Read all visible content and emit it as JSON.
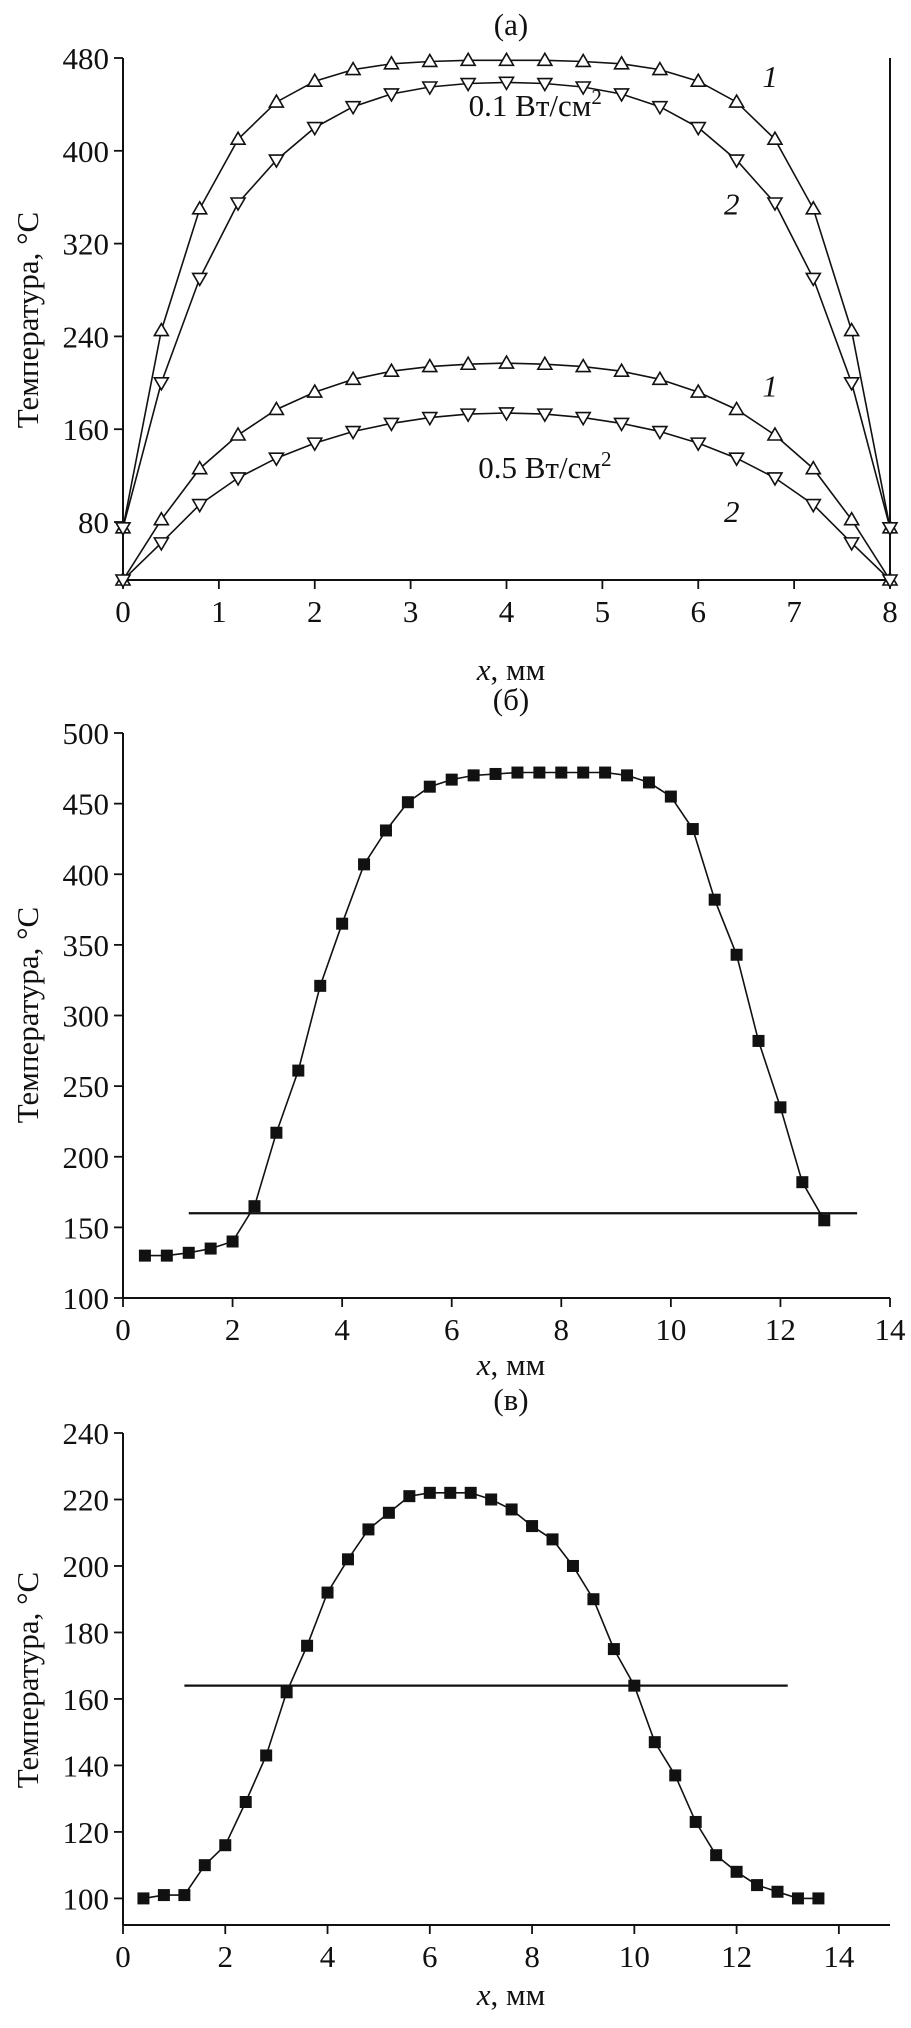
{
  "chart_data": [
    {
      "type": "line",
      "panel_label": "(а)",
      "xlabel_var": "x",
      "xlabel_unit": ", мм",
      "ylabel": "Температура, °С",
      "xlim": [
        0,
        8
      ],
      "ylim": [
        30,
        480
      ],
      "xticks": [
        0,
        1,
        2,
        3,
        4,
        5,
        6,
        7,
        8
      ],
      "yticks": [
        80,
        160,
        240,
        320,
        400,
        480
      ],
      "grid": false,
      "legend": "none",
      "annotations": [
        {
          "text": "0.1 Вт/см",
          "sup": "2"
        },
        {
          "text": "0.5 Вт/см",
          "sup": "2"
        },
        {
          "text": "1"
        },
        {
          "text": "2"
        },
        {
          "text": "1"
        },
        {
          "text": "2"
        }
      ],
      "series": [
        {
          "marker": "triangle-up",
          "x": [
            0,
            0.4,
            0.8,
            1.2,
            1.6,
            2.0,
            2.4,
            2.8,
            3.2,
            3.6,
            4.0,
            4.4,
            4.8,
            5.2,
            5.6,
            6.0,
            6.4,
            6.8,
            7.2,
            7.6,
            8.0
          ],
          "values": [
            75,
            245,
            350,
            410,
            442,
            460,
            470,
            475,
            477,
            478,
            478,
            478,
            477,
            475,
            470,
            460,
            442,
            410,
            350,
            245,
            75
          ]
        },
        {
          "marker": "triangle-down",
          "x": [
            0,
            0.4,
            0.8,
            1.2,
            1.6,
            2.0,
            2.4,
            2.8,
            3.2,
            3.6,
            4.0,
            4.4,
            4.8,
            5.2,
            5.6,
            6.0,
            6.4,
            6.8,
            7.2,
            7.6,
            8.0
          ],
          "values": [
            75,
            200,
            290,
            355,
            392,
            420,
            438,
            449,
            455,
            458,
            459,
            458,
            455,
            449,
            438,
            420,
            392,
            355,
            290,
            200,
            75
          ]
        },
        {
          "marker": "triangle-up",
          "x": [
            0,
            0.4,
            0.8,
            1.2,
            1.6,
            2.0,
            2.4,
            2.8,
            3.2,
            3.6,
            4.0,
            4.4,
            4.8,
            5.2,
            5.6,
            6.0,
            6.4,
            6.8,
            7.2,
            7.6,
            8.0
          ],
          "values": [
            30,
            82,
            126,
            155,
            177,
            192,
            203,
            210,
            214,
            216,
            217,
            216,
            214,
            210,
            203,
            192,
            177,
            155,
            126,
            82,
            30
          ]
        },
        {
          "marker": "triangle-down",
          "x": [
            0,
            0.4,
            0.8,
            1.2,
            1.6,
            2.0,
            2.4,
            2.8,
            3.2,
            3.6,
            4.0,
            4.4,
            4.8,
            5.2,
            5.6,
            6.0,
            6.4,
            6.8,
            7.2,
            7.6,
            8.0
          ],
          "values": [
            30,
            62,
            95,
            118,
            135,
            148,
            158,
            165,
            170,
            173,
            174,
            173,
            170,
            165,
            158,
            148,
            135,
            118,
            95,
            62,
            30
          ]
        }
      ]
    },
    {
      "type": "line",
      "panel_label": "(б)",
      "xlabel_var": "x",
      "xlabel_unit": ", мм",
      "ylabel": "Температура, °С",
      "xlim": [
        0,
        14
      ],
      "ylim": [
        100,
        500
      ],
      "xticks": [
        0,
        2,
        4,
        6,
        8,
        10,
        12,
        14
      ],
      "yticks": [
        100,
        150,
        200,
        250,
        300,
        350,
        400,
        450,
        500
      ],
      "grid": false,
      "legend": "none",
      "reference_line": {
        "y": 160,
        "x": [
          1.2,
          13.4
        ]
      },
      "series": [
        {
          "marker": "square",
          "x": [
            0.4,
            0.8,
            1.2,
            1.6,
            2.0,
            2.4,
            2.8,
            3.2,
            3.6,
            4.0,
            4.4,
            4.8,
            5.2,
            5.6,
            6.0,
            6.4,
            6.8,
            7.2,
            7.6,
            8.0,
            8.4,
            8.8,
            9.2,
            9.6,
            10.0,
            10.4,
            10.8,
            11.2,
            11.6,
            12.0,
            12.4,
            12.8
          ],
          "values": [
            130,
            130,
            132,
            135,
            140,
            165,
            217,
            261,
            321,
            365,
            407,
            431,
            451,
            462,
            467,
            470,
            471,
            472,
            472,
            472,
            472,
            472,
            470,
            465,
            455,
            432,
            382,
            343,
            282,
            235,
            182,
            155
          ]
        }
      ]
    },
    {
      "type": "line",
      "panel_label": "(в)",
      "xlabel_var": "x",
      "xlabel_unit": ", мм",
      "ylabel": "Температура, °С",
      "xlim": [
        0,
        15
      ],
      "ylim": [
        92,
        240
      ],
      "xticks": [
        0,
        2,
        4,
        6,
        8,
        10,
        12,
        14
      ],
      "yticks": [
        100,
        120,
        140,
        160,
        180,
        200,
        220,
        240
      ],
      "grid": false,
      "legend": "none",
      "reference_line": {
        "y": 164,
        "x": [
          1.2,
          13.0
        ]
      },
      "series": [
        {
          "marker": "square",
          "x": [
            0.4,
            0.8,
            1.2,
            1.6,
            2.0,
            2.4,
            2.8,
            3.2,
            3.6,
            4.0,
            4.4,
            4.8,
            5.2,
            5.6,
            6.0,
            6.4,
            6.8,
            7.2,
            7.6,
            8.0,
            8.4,
            8.8,
            9.2,
            9.6,
            10.0,
            10.4,
            10.8,
            11.2,
            11.6,
            12.0,
            12.4,
            12.8,
            13.2,
            13.6
          ],
          "values": [
            100,
            101,
            101,
            110,
            116,
            129,
            143,
            162,
            176,
            192,
            202,
            211,
            216,
            221,
            222,
            222,
            222,
            220,
            217,
            212,
            208,
            200,
            190,
            175,
            164,
            147,
            137,
            123,
            113,
            108,
            104,
            102,
            100,
            100
          ]
        }
      ]
    }
  ]
}
